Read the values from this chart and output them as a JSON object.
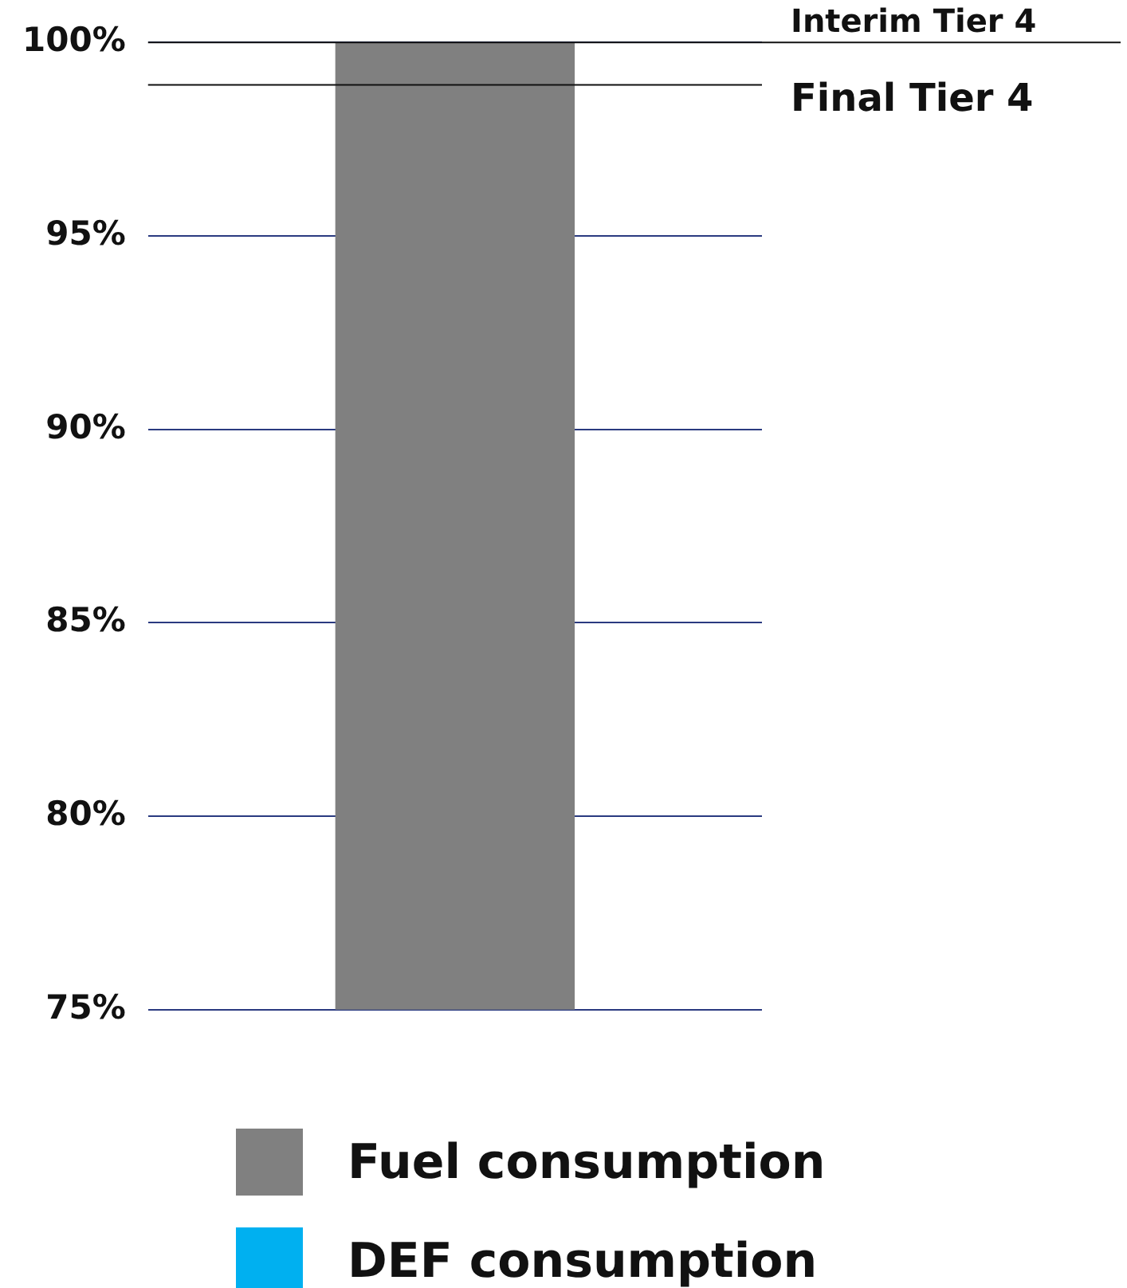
{
  "chart_data": {
    "type": "bar",
    "categories": [
      null
    ],
    "series": [
      {
        "name": "Fuel consumption",
        "color": "#808080",
        "values": [
          100
        ]
      },
      {
        "name": "DEF consumption",
        "color": "#00b0f0",
        "values": [
          null
        ]
      }
    ],
    "ylim": [
      75,
      100
    ],
    "yticks": [
      {
        "value": 75,
        "label": "75%"
      },
      {
        "value": 80,
        "label": "80%"
      },
      {
        "value": 85,
        "label": "85%"
      },
      {
        "value": 90,
        "label": "90%"
      },
      {
        "value": 95,
        "label": "95%"
      },
      {
        "value": 100,
        "label": "100%"
      }
    ],
    "grid": "y",
    "legend": "bottom",
    "tick_labels": "y",
    "ref_lines": [
      {
        "axis": "y",
        "value": 100,
        "label": "Interim Tier 4"
      },
      {
        "axis": "y",
        "value": 98.9,
        "label": "Final Tier 4"
      }
    ]
  }
}
